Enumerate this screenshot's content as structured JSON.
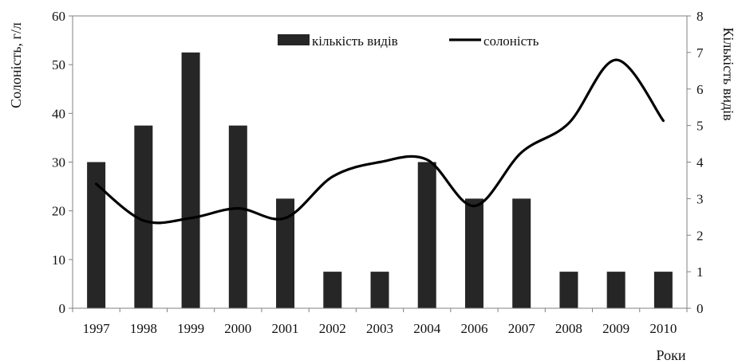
{
  "chart_data": {
    "type": "bar",
    "categories": [
      "1997",
      "1998",
      "1999",
      "2000",
      "2001",
      "2002",
      "2003",
      "2004",
      "2006",
      "2007",
      "2008",
      "2009",
      "2010"
    ],
    "series": [
      {
        "name": "кількість видів",
        "type": "bar",
        "axis": "right",
        "color": "#262626",
        "values": [
          4,
          5,
          7,
          5,
          3,
          1,
          1,
          4,
          3,
          3,
          1,
          1,
          1
        ]
      },
      {
        "name": "солоність",
        "type": "line",
        "axis": "left",
        "color": "#000000",
        "smooth": true,
        "values": [
          25.5,
          18,
          18.5,
          20.5,
          18.5,
          27,
          30,
          30.5,
          21,
          32,
          38,
          51,
          38.5
        ]
      }
    ],
    "xlabel": "Роки",
    "ylabel": "Солоність, г/л",
    "y2label": "Кількість видів",
    "ylim": [
      0,
      60
    ],
    "y2lim": [
      0,
      8
    ],
    "yticks": [
      0,
      10,
      20,
      30,
      40,
      50,
      60
    ],
    "y2ticks": [
      0,
      1,
      2,
      3,
      4,
      5,
      6,
      7,
      8
    ],
    "grid": false,
    "legend": "top-center"
  }
}
